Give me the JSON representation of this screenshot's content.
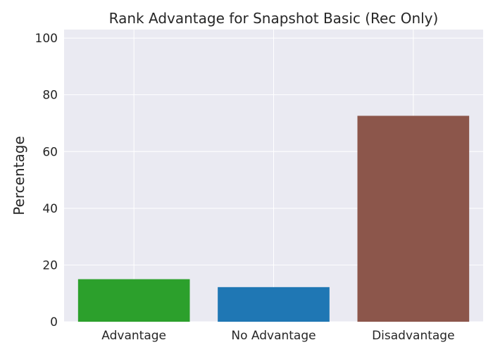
{
  "chart_data": {
    "type": "bar",
    "title": "Rank Advantage for Snapshot Basic (Rec Only)",
    "xlabel": "",
    "ylabel": "Percentage",
    "categories": [
      "Advantage",
      "No Advantage",
      "Disadvantage"
    ],
    "values": [
      15.0,
      12.2,
      72.6
    ],
    "colors": [
      "#2ca02c",
      "#1f77b4",
      "#8c564b"
    ],
    "ylim": [
      0,
      103
    ],
    "yticks": [
      "0",
      "20",
      "40",
      "60",
      "80",
      "100"
    ],
    "grid": true,
    "background": "#eaeaf2",
    "grid_color": "#ffffff"
  }
}
